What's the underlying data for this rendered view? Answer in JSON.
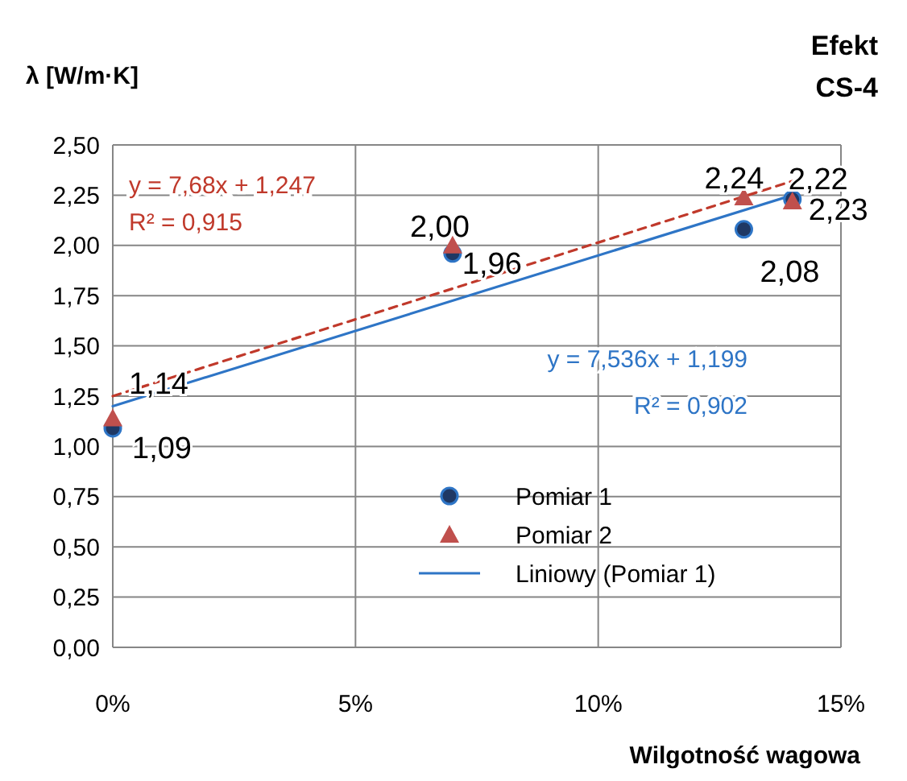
{
  "chart_data": {
    "type": "scatter",
    "title": "Efekt CS-4",
    "xlabel": "Wilgotność wagowa",
    "ylabel": "λ [W/m·K]",
    "xlim": [
      0,
      0.15
    ],
    "xticks": [
      {
        "value": 0,
        "label": "0%"
      },
      {
        "value": 0.05,
        "label": "5%"
      },
      {
        "value": 0.1,
        "label": "10%"
      },
      {
        "value": 0.15,
        "label": "15%"
      }
    ],
    "ylim": [
      0,
      2.5
    ],
    "yticks": [
      {
        "value": 0,
        "label": "0,00"
      },
      {
        "value": 0.25,
        "label": "0,25"
      },
      {
        "value": 0.5,
        "label": "0,50"
      },
      {
        "value": 0.75,
        "label": "0,75"
      },
      {
        "value": 1,
        "label": "1,00"
      },
      {
        "value": 1.25,
        "label": "1,25"
      },
      {
        "value": 1.5,
        "label": "1,50"
      },
      {
        "value": 1.75,
        "label": "1,75"
      },
      {
        "value": 2,
        "label": "2,00"
      },
      {
        "value": 2.25,
        "label": "2,25"
      },
      {
        "value": 2.5,
        "label": "2,50"
      }
    ],
    "grid": true,
    "legend": "bottom right",
    "series": [
      {
        "name": "Pomiar 1",
        "type": "scatter",
        "marker": "circle",
        "color": "#1f3864",
        "x": [
          0,
          0.07,
          0.13,
          0.14
        ],
        "values": [
          1.09,
          1.96,
          2.08,
          2.23
        ],
        "value_labels": [
          "1,09",
          "1,96",
          "2,08",
          "2,23"
        ]
      },
      {
        "name": "Pomiar 2",
        "type": "scatter",
        "marker": "triangle",
        "color": "#c0504d",
        "x": [
          0,
          0.07,
          0.13,
          0.14
        ],
        "values": [
          1.14,
          2.0,
          2.24,
          2.22
        ],
        "value_labels": [
          "1,14",
          "2,00",
          "2,24",
          "2,22"
        ]
      },
      {
        "name": "Liniowy (Pomiar 1)",
        "type": "line",
        "marker": "none",
        "line_style": "solid",
        "color": "#2e75c6",
        "x": [
          0,
          0.14
        ],
        "values": [
          1.2,
          2.25
        ]
      },
      {
        "type": "line",
        "marker": "none",
        "line_style": "dashed",
        "color": "#c0392b",
        "x": [
          0,
          0.14
        ],
        "values": [
          1.25,
          2.32
        ]
      }
    ],
    "annotations": [
      "y = 7,68x + 1,247",
      "R² = 0,915",
      "y = 7,536x + 1,199",
      "R² = 0,902"
    ]
  }
}
